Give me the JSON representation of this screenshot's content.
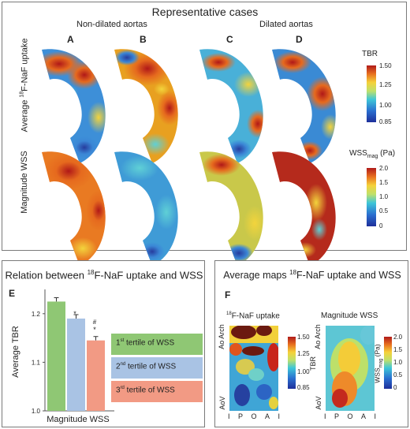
{
  "top_panel": {
    "title": "Representative cases",
    "group_nondilated": "Non-dilated aortas",
    "group_dilated": "Dilated aortas",
    "column_letters": [
      "A",
      "B",
      "C",
      "D"
    ],
    "row1_label_sup": "18",
    "row1_label_main": "F-NaF uptake",
    "row1_label_prefix": "Average ",
    "row2_label": "Magnitude WSS",
    "tbr_bar": {
      "title": "TBR",
      "ticks": [
        "1.50",
        "1.25",
        "1.00",
        "0.85"
      ]
    },
    "wss_bar": {
      "title_main": "WSS",
      "title_sub": "mag",
      "title_unit": " (Pa)",
      "ticks": [
        "2.0",
        "1.5",
        "1.0",
        "0.5",
        "0"
      ]
    }
  },
  "bottom_left": {
    "letter": "E",
    "title_pre": "Relation between ",
    "title_sup": "18",
    "title_post": "F-NaF uptake and WSS",
    "ylabel": "Average TBR",
    "xlabel": "Magnitude WSS",
    "yticks": [
      "1.2",
      "1.1",
      "1.0"
    ],
    "sig_1": "*",
    "sig_2_a": "#",
    "sig_2_b": "*",
    "legend": [
      {
        "ord": "1",
        "sup": "st",
        "rest": " tertile of WSS",
        "color": "#8fc774"
      },
      {
        "ord": "2",
        "sup": "nd",
        "rest": " tertile of WSS",
        "color": "#a9c3e4"
      },
      {
        "ord": "3",
        "sup": "rd",
        "rest": " tertile of WSS",
        "color": "#f29a84"
      }
    ]
  },
  "bottom_right": {
    "letter": "F",
    "title_pre": "Average maps ",
    "title_sup": "18",
    "title_post": "F-NaF uptake and WSS",
    "map1_title_sup": "18",
    "map1_title": "F-NaF uptake",
    "map2_title": "Magnitude WSS",
    "ylabel_top": "Ao Arch",
    "ylabel_bottom": "AoV",
    "x_ticks": [
      "I",
      "P",
      "O",
      "A",
      "I"
    ],
    "tbr_bar": {
      "title": "TBR",
      "ticks": [
        "1.50",
        "1.25",
        "1.00",
        "0.85"
      ]
    },
    "wss_bar": {
      "title_main": "WSS",
      "title_sub": "mag",
      "title_unit": " (Pa)",
      "ticks": [
        "2.0",
        "1.5",
        "1.0",
        "0.5",
        "0"
      ]
    }
  },
  "chart_data": {
    "type": "bar",
    "categories": [
      "1st tertile of WSS",
      "2nd tertile of WSS",
      "3rd tertile of WSS"
    ],
    "values": [
      1.225,
      1.19,
      1.145
    ],
    "errors": [
      0.008,
      0.008,
      0.008
    ],
    "colors": [
      "#8fc774",
      "#a9c3e4",
      "#f29a84"
    ],
    "title": "Relation between 18F-NaF uptake and WSS",
    "xlabel": "Magnitude WSS",
    "ylabel": "Average TBR",
    "ylim": [
      1.0,
      1.25
    ],
    "yticks": [
      1.0,
      1.1,
      1.2
    ]
  }
}
